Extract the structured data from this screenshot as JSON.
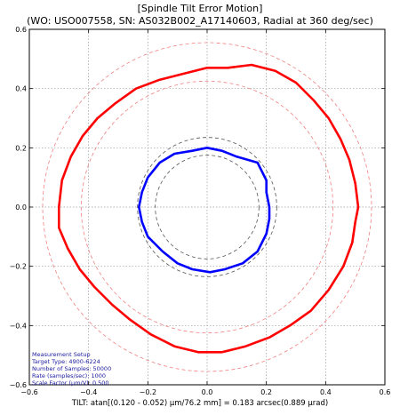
{
  "chart_data": {
    "type": "polar_error_motion",
    "title": "[Spindle Tilt Error Motion]",
    "subtitle": "(WO: USO007558, SN: AS032B002_A17140603, Radial at 360 deg/sec)",
    "xlabel": "TILT: atan[(0.120 - 0.052) µm/76.2 mm] = 0.183 arcsec(0.889 µrad)",
    "ylabel": "",
    "xlim": [
      -0.6,
      0.6
    ],
    "ylim": [
      -0.6,
      0.6
    ],
    "x_ticks": [
      "−0.6",
      "−0.4",
      "−0.2",
      "0.0",
      "0.2",
      "0.4",
      "0.6"
    ],
    "y_ticks": [
      "0.6",
      "0.4",
      "0.2",
      "0.0",
      "−0.2",
      "−0.4",
      "−0.6"
    ],
    "grid": true,
    "reference_circles": [
      {
        "radius": 0.555,
        "color": "#f08080"
      },
      {
        "radius": 0.425,
        "color": "#f08080"
      },
      {
        "radius": 0.235,
        "color": "#555555"
      },
      {
        "radius": 0.175,
        "color": "#555555"
      }
    ],
    "series": [
      {
        "color": "#ff0000",
        "points": [
          [
            0.51,
            0.0
          ],
          [
            0.5,
            0.08
          ],
          [
            0.48,
            0.16
          ],
          [
            0.45,
            0.23
          ],
          [
            0.41,
            0.3
          ],
          [
            0.36,
            0.36
          ],
          [
            0.3,
            0.42
          ],
          [
            0.23,
            0.46
          ],
          [
            0.15,
            0.48
          ],
          [
            0.07,
            0.47
          ],
          [
            0.0,
            0.47
          ],
          [
            -0.08,
            0.45
          ],
          [
            -0.16,
            0.43
          ],
          [
            -0.24,
            0.4
          ],
          [
            -0.31,
            0.35
          ],
          [
            -0.37,
            0.3
          ],
          [
            -0.42,
            0.24
          ],
          [
            -0.46,
            0.17
          ],
          [
            -0.49,
            0.09
          ],
          [
            -0.5,
            0.0
          ],
          [
            -0.5,
            -0.07
          ],
          [
            -0.47,
            -0.14
          ],
          [
            -0.43,
            -0.21
          ],
          [
            -0.38,
            -0.27
          ],
          [
            -0.32,
            -0.33
          ],
          [
            -0.26,
            -0.38
          ],
          [
            -0.19,
            -0.43
          ],
          [
            -0.11,
            -0.47
          ],
          [
            -0.03,
            -0.49
          ],
          [
            0.05,
            -0.49
          ],
          [
            0.13,
            -0.47
          ],
          [
            0.21,
            -0.44
          ],
          [
            0.28,
            -0.4
          ],
          [
            0.35,
            -0.35
          ],
          [
            0.41,
            -0.28
          ],
          [
            0.46,
            -0.2
          ],
          [
            0.49,
            -0.12
          ],
          [
            0.5,
            -0.05
          ]
        ]
      },
      {
        "color": "#0000ff",
        "points": [
          [
            0.21,
            0.0
          ],
          [
            0.2,
            0.05
          ],
          [
            0.2,
            0.09
          ],
          [
            0.17,
            0.15
          ],
          [
            0.1,
            0.17
          ],
          [
            0.05,
            0.19
          ],
          [
            0.0,
            0.2
          ],
          [
            -0.05,
            0.19
          ],
          [
            -0.11,
            0.18
          ],
          [
            -0.16,
            0.15
          ],
          [
            -0.2,
            0.1
          ],
          [
            -0.22,
            0.05
          ],
          [
            -0.23,
            0.0
          ],
          [
            -0.22,
            -0.05
          ],
          [
            -0.2,
            -0.1
          ],
          [
            -0.15,
            -0.15
          ],
          [
            -0.1,
            -0.19
          ],
          [
            -0.05,
            -0.21
          ],
          [
            0.01,
            -0.22
          ],
          [
            0.06,
            -0.21
          ],
          [
            0.12,
            -0.19
          ],
          [
            0.17,
            -0.15
          ],
          [
            0.2,
            -0.09
          ],
          [
            0.21,
            -0.04
          ]
        ]
      }
    ],
    "annotations": [
      "Measurement Setup",
      "Target Type: 4900-6224",
      "Number of Samples: 50000",
      "Rate (samples/sec): 1000",
      "Scale Factor (µm/V): 0.500"
    ]
  }
}
